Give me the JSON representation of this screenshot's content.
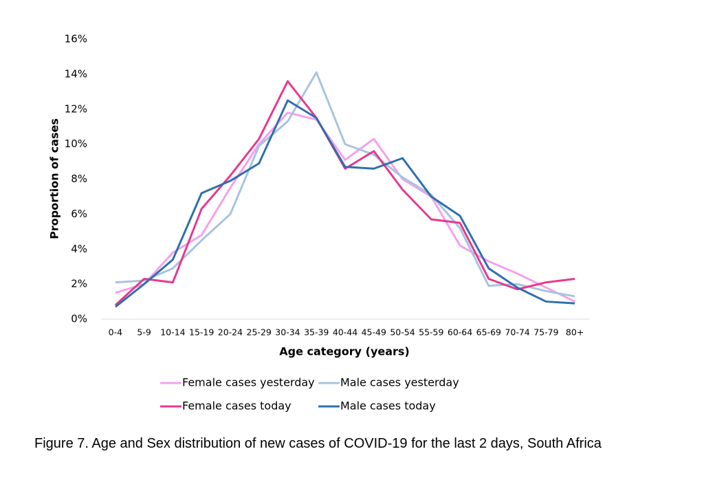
{
  "chart_data": {
    "type": "line",
    "y_label": "Proportion of cases",
    "x_label": "Age category (years)",
    "caption": "Figure 7. Age and Sex distribution of new cases of COVID-19 for the last 2 days, South Africa",
    "categories": [
      "0-4",
      "5-9",
      "10-14",
      "15-19",
      "20-24",
      "25-29",
      "30-34",
      "35-39",
      "40-44",
      "45-49",
      "50-54",
      "55-59",
      "60-64",
      "65-69",
      "70-74",
      "75-79",
      "80+"
    ],
    "ylim": [
      0,
      16
    ],
    "yticks": [
      {
        "value": 0,
        "label": "0%"
      },
      {
        "value": 2,
        "label": "2%"
      },
      {
        "value": 4,
        "label": "4%"
      },
      {
        "value": 6,
        "label": "6%"
      },
      {
        "value": 8,
        "label": "8%"
      },
      {
        "value": 10,
        "label": "10%"
      },
      {
        "value": 12,
        "label": "12%"
      },
      {
        "value": 14,
        "label": "14%"
      },
      {
        "value": 16,
        "label": "16%"
      }
    ],
    "grid": false,
    "series": [
      {
        "name": "Female cases yesterday",
        "color": "#f5a0ef",
        "values": [
          1.5,
          2.0,
          3.8,
          4.8,
          7.5,
          10.0,
          11.8,
          11.4,
          9.1,
          10.3,
          8.0,
          7.0,
          4.2,
          3.3,
          2.6,
          1.8,
          1.0
        ]
      },
      {
        "name": "Male cases yesterday",
        "color": "#a7c4e0",
        "values": [
          2.1,
          2.2,
          2.9,
          4.5,
          6.0,
          9.9,
          11.3,
          14.1,
          10.0,
          9.4,
          8.1,
          7.1,
          5.2,
          1.9,
          2.0,
          1.6,
          1.3
        ]
      },
      {
        "name": "Female cases today",
        "color": "#e8388f",
        "values": [
          0.8,
          2.3,
          2.1,
          6.3,
          8.2,
          10.3,
          13.6,
          11.5,
          8.6,
          9.6,
          7.4,
          5.7,
          5.5,
          2.3,
          1.7,
          2.1,
          2.3
        ]
      },
      {
        "name": "Male cases today",
        "color": "#2e6fad",
        "values": [
          0.7,
          2.0,
          3.4,
          7.2,
          7.9,
          8.9,
          12.5,
          11.5,
          8.7,
          8.6,
          9.2,
          7.0,
          5.9,
          2.9,
          1.8,
          1.0,
          0.9
        ]
      }
    ]
  }
}
